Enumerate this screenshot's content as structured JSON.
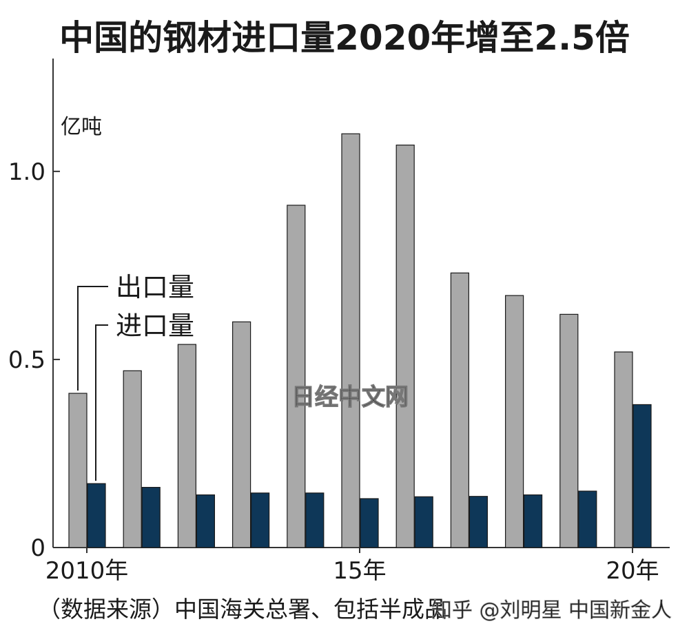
{
  "chart_data": {
    "type": "bar",
    "title": "中国的钢材进口量2020年增至2.5倍",
    "unit": "亿吨",
    "categories": [
      "2010",
      "2011",
      "2012",
      "2013",
      "2014",
      "2015",
      "2016",
      "2017",
      "2018",
      "2019",
      "2020"
    ],
    "x_tick_labels": [
      {
        "index": 0,
        "label": "2010年"
      },
      {
        "index": 5,
        "label": "15年"
      },
      {
        "index": 10,
        "label": "20年"
      }
    ],
    "series": [
      {
        "name": "出口量",
        "color": "#a9a9a9",
        "values": [
          0.41,
          0.47,
          0.54,
          0.6,
          0.91,
          1.1,
          1.07,
          0.73,
          0.67,
          0.62,
          0.52
        ]
      },
      {
        "name": "进口量",
        "color": "#0e3758",
        "values": [
          0.17,
          0.16,
          0.14,
          0.145,
          0.145,
          0.13,
          0.135,
          0.136,
          0.14,
          0.15,
          0.38
        ]
      }
    ],
    "ylim": [
      0,
      1.3
    ],
    "y_ticks": [
      {
        "value": 0,
        "label": "0"
      },
      {
        "value": 0.5,
        "label": "0.5"
      },
      {
        "value": 1.0,
        "label": "1.0"
      }
    ],
    "grid": false,
    "legend_position": "left"
  },
  "source_note": "（数据来源）中国海关总署、包括半成品",
  "watermark": "日经中文网",
  "credit": "知乎 @刘明星 中国新金人"
}
